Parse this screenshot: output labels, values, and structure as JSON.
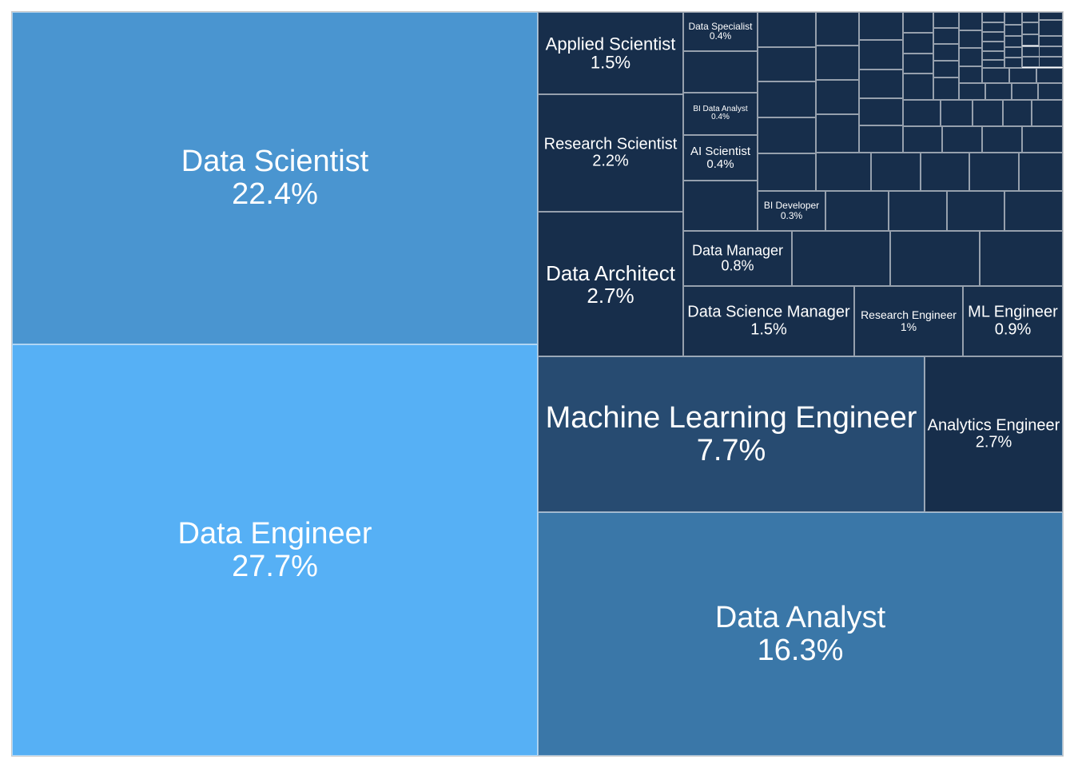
{
  "chart_data": {
    "type": "treemap",
    "colors": {
      "data_engineer": "#56b0f5",
      "data_scientist": "#4a95d0",
      "data_analyst": "#3a77a8",
      "machine_learning_engineer": "#274b71",
      "small_roles": "#172e4b"
    },
    "items": [
      {
        "label": "Data Engineer",
        "value_text": "27.7%",
        "value": 27.7,
        "color": "#56b0f5"
      },
      {
        "label": "Data Scientist",
        "value_text": "22.4%",
        "value": 22.4,
        "color": "#4a95d0"
      },
      {
        "label": "Data Analyst",
        "value_text": "16.3%",
        "value": 16.3,
        "color": "#3a77a8"
      },
      {
        "label": "Machine Learning Engineer",
        "value_text": "7.7%",
        "value": 7.7,
        "color": "#274b71"
      },
      {
        "label": "Analytics Engineer",
        "value_text": "2.7%",
        "value": 2.7,
        "color": "#172e4b"
      },
      {
        "label": "Data Architect",
        "value_text": "2.7%",
        "value": 2.7,
        "color": "#172e4b"
      },
      {
        "label": "Research Scientist",
        "value_text": "2.2%",
        "value": 2.2,
        "color": "#172e4b"
      },
      {
        "label": "Applied Scientist",
        "value_text": "1.5%",
        "value": 1.5,
        "color": "#172e4b"
      },
      {
        "label": "Data Science Manager",
        "value_text": "1.5%",
        "value": 1.5,
        "color": "#172e4b"
      },
      {
        "label": "Research Engineer",
        "value_text": "1%",
        "value": 1.0,
        "color": "#172e4b"
      },
      {
        "label": "ML Engineer",
        "value_text": "0.9%",
        "value": 0.9,
        "color": "#172e4b"
      },
      {
        "label": "Data Manager",
        "value_text": "0.8%",
        "value": 0.8,
        "color": "#172e4b"
      },
      {
        "label": "Data Specialist",
        "value_text": "0.4%",
        "value": 0.4,
        "color": "#172e4b"
      },
      {
        "label": "BI Data Analyst",
        "value_text": "0.4%",
        "value": 0.4,
        "color": "#172e4b"
      },
      {
        "label": "AI Scientist",
        "value_text": "0.4%",
        "value": 0.4,
        "color": "#172e4b"
      },
      {
        "label": "BI Developer",
        "value_text": "0.3%",
        "value": 0.3,
        "color": "#172e4b"
      }
    ],
    "unlabeled_tiles_color": "#172e4b"
  }
}
